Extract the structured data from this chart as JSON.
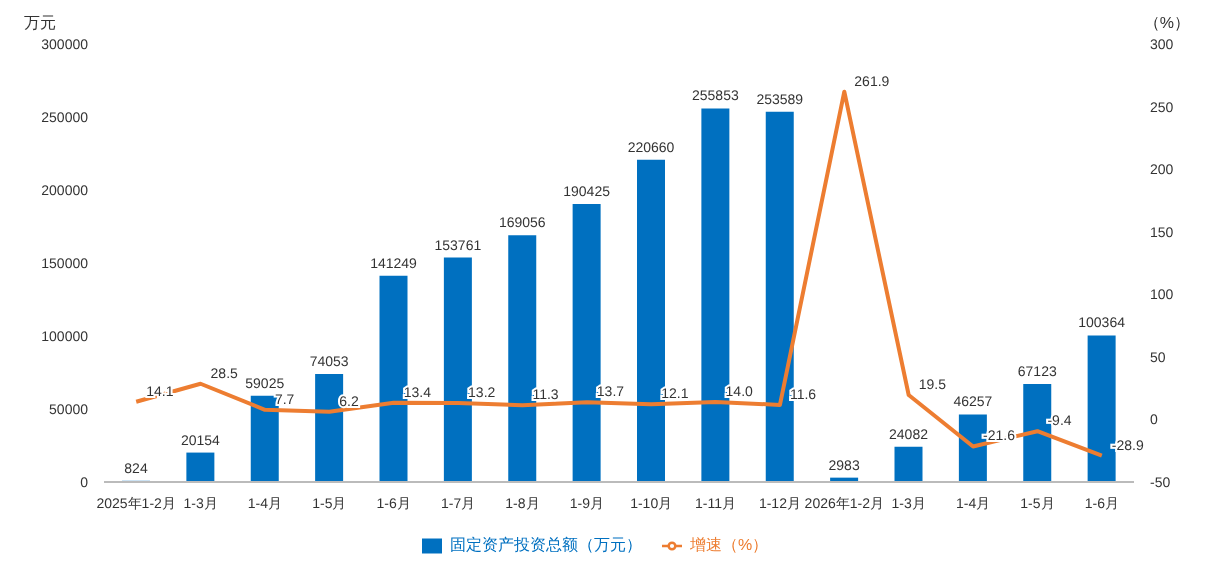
{
  "chart_data": {
    "type": "bar",
    "ylabel": "万元",
    "y2label": "（%）",
    "categories": [
      "2025年1-2月",
      "1-3月",
      "1-4月",
      "1-5月",
      "1-6月",
      "1-7月",
      "1-8月",
      "1-9月",
      "1-10月",
      "1-11月",
      "1-12月",
      "2026年1-2月",
      "1-3月",
      "1-4月",
      "1-5月",
      "1-6月"
    ],
    "series": [
      {
        "name": "固定资产投资总额（万元）",
        "color": "#0070c0",
        "values": [
          824,
          20154,
          59025,
          74053,
          141249,
          153761,
          169056,
          190425,
          220660,
          255853,
          253589,
          2983,
          24082,
          46257,
          67123,
          100364
        ]
      },
      {
        "name": "增速（%）",
        "type": "line",
        "axis": "y2",
        "color": "#ed7d31",
        "values": [
          14.1,
          28.5,
          7.7,
          6.2,
          13.4,
          13.2,
          11.3,
          13.7,
          12.1,
          14.0,
          11.6,
          261.9,
          19.5,
          -21.6,
          -9.4,
          -28.9
        ],
        "value_labels": [
          "14.1",
          "28.5",
          "7.7",
          "6.2",
          "13.4",
          "13.2",
          "11.3",
          "13.7",
          "12.1",
          "14.0",
          "11.6",
          "261.9",
          "19.5",
          "-21.6",
          "-9.4",
          "-28.9"
        ]
      }
    ],
    "ylim": [
      0,
      300000
    ],
    "yticks": [
      0,
      50000,
      100000,
      150000,
      200000,
      250000,
      300000
    ],
    "y2lim": [
      -50,
      300
    ],
    "y2ticks": [
      -50,
      0,
      50,
      100,
      150,
      200,
      250,
      300
    ],
    "data_labels": true,
    "legend": "bottom",
    "marker": "none"
  }
}
